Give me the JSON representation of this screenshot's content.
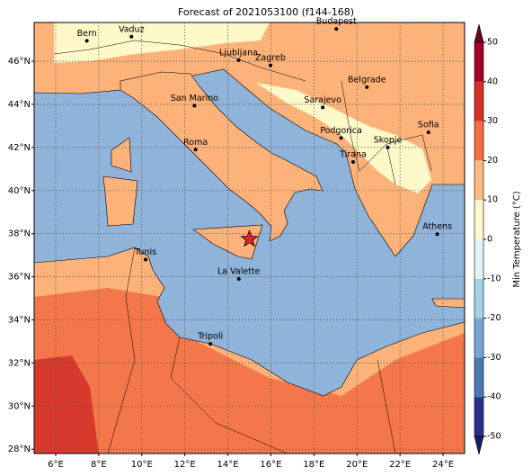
{
  "map": {
    "title": "Forecast of 2021053100 (f144-168)",
    "xlim": [
      5,
      25
    ],
    "ylim": [
      27.8,
      47.8
    ],
    "xticks": [
      {
        "value": 6,
        "label": "6°E"
      },
      {
        "value": 8,
        "label": "8°E"
      },
      {
        "value": 10,
        "label": "10°E"
      },
      {
        "value": 12,
        "label": "12°E"
      },
      {
        "value": 14,
        "label": "14°E"
      },
      {
        "value": 16,
        "label": "16°E"
      },
      {
        "value": 18,
        "label": "18°E"
      },
      {
        "value": 20,
        "label": "20°E"
      },
      {
        "value": 22,
        "label": "22°E"
      },
      {
        "value": 24,
        "label": "24°E"
      }
    ],
    "yticks": [
      {
        "value": 28,
        "label": "28°N"
      },
      {
        "value": 30,
        "label": "30°N"
      },
      {
        "value": 32,
        "label": "32°N"
      },
      {
        "value": 34,
        "label": "34°N"
      },
      {
        "value": 36,
        "label": "36°N"
      },
      {
        "value": 38,
        "label": "38°N"
      },
      {
        "value": 40,
        "label": "40°N"
      },
      {
        "value": 42,
        "label": "42°N"
      },
      {
        "value": 44,
        "label": "44°N"
      },
      {
        "value": 46,
        "label": "46°N"
      }
    ],
    "grid": true,
    "cities": [
      {
        "name": "Bern",
        "lon": 7.45,
        "lat": 46.95
      },
      {
        "name": "Vaduz",
        "lon": 9.52,
        "lat": 47.14
      },
      {
        "name": "Budapest",
        "lon": 19.04,
        "lat": 47.5
      },
      {
        "name": "Ljubljana",
        "lon": 14.5,
        "lat": 46.05
      },
      {
        "name": "Zagreb",
        "lon": 15.98,
        "lat": 45.81
      },
      {
        "name": "Belgrade",
        "lon": 20.46,
        "lat": 44.8
      },
      {
        "name": "Sarajevo",
        "lon": 18.41,
        "lat": 43.86
      },
      {
        "name": "San Marino",
        "lon": 12.45,
        "lat": 43.94
      },
      {
        "name": "Sofia",
        "lon": 23.32,
        "lat": 42.7
      },
      {
        "name": "Podgorica",
        "lon": 19.26,
        "lat": 42.44
      },
      {
        "name": "Skopje",
        "lon": 21.43,
        "lat": 42.0
      },
      {
        "name": "Roma",
        "lon": 12.5,
        "lat": 41.9
      },
      {
        "name": "Tirana",
        "lon": 19.82,
        "lat": 41.33
      },
      {
        "name": "Athens",
        "lon": 23.73,
        "lat": 37.98
      },
      {
        "name": "Tunis",
        "lon": 10.18,
        "lat": 36.8
      },
      {
        "name": "La Valette",
        "lon": 14.51,
        "lat": 35.9
      },
      {
        "name": "Tripoli",
        "lon": 13.19,
        "lat": 32.89
      }
    ],
    "star": {
      "lon": 15.0,
      "lat": 37.75,
      "color": "#e8202a"
    },
    "colorbar": {
      "label": "Min Temperature (°C)",
      "levels": [
        -50,
        -40,
        -30,
        -20,
        -10,
        0,
        10,
        20,
        30,
        40,
        50
      ],
      "colors": [
        "#2a2f8c",
        "#4a78b5",
        "#74a6cf",
        "#a6d0e4",
        "#e3f3f8",
        "#fff8c8",
        "#fdba81",
        "#f46d43",
        "#d73027",
        "#a50026"
      ],
      "extend_colors": {
        "min": "#1b1b66",
        "max": "#67001f"
      },
      "ticks": [
        -50,
        -40,
        -30,
        -20,
        -10,
        0,
        10,
        20,
        30,
        40,
        50
      ]
    }
  }
}
